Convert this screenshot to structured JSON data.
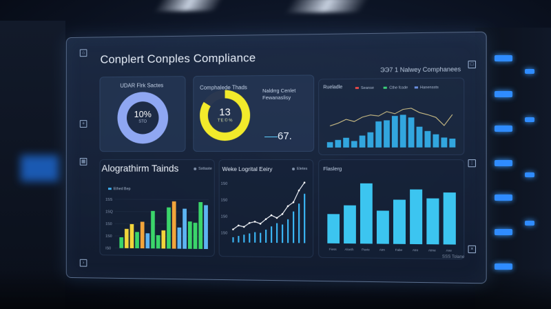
{
  "header": {
    "title": "Conplert Conples Compliance",
    "subtitle": "ЭЭ7 1 Nalwey Comphanees"
  },
  "cards": {
    "donut_a": {
      "label": "UDAR Flrk Sactes",
      "value": "10%",
      "sub": "STO"
    },
    "donut_b": {
      "label": "Comphalede Thads",
      "value": "13",
      "sub": "T’E © %"
    },
    "kpi": {
      "label_line1": "Naldrrg Cenlet",
      "label_line2": "Fewanaslisy",
      "value": "67."
    },
    "top_chart": {
      "label": "Rueladle",
      "legend": [
        "Seanse",
        "Cthe fcsde",
        "Hanenssts"
      ],
      "legend_colors": [
        "#e04848",
        "#3cd17a",
        "#6a8fe0"
      ]
    },
    "algo": {
      "title": "Alograthirm Tainds",
      "tag": "Ssttaste",
      "legend_text": "Ethed Bep",
      "y_ticks": [
        "1SS",
        "1SQ",
        "1S0",
        "1S0",
        "IS0"
      ],
      "chart_data": {
        "type": "bar",
        "values": [
          18,
          32,
          40,
          27,
          44,
          25,
          62,
          22,
          30,
          68,
          78,
          35,
          66,
          45,
          43,
          77,
          72
        ],
        "colors": [
          "#3bd56a",
          "#f2d53b",
          "#f2d53b",
          "#3bd56a",
          "#f2a43b",
          "#5db4f2",
          "#3bd56a",
          "#3bd56a",
          "#f2d53b",
          "#3bd56a",
          "#f2a43b",
          "#5db4f2",
          "#5db4f2",
          "#3bd56a",
          "#3bd56a",
          "#3bd56a",
          "#5db4f2"
        ],
        "ylim": [
          0,
          90
        ]
      }
    },
    "media": {
      "title": "Weke Logrital Eeiry",
      "tag": "Eletes",
      "y_ticks": [
        "1S0",
        "1S0",
        "1S0",
        "1S0"
      ],
      "chart_data": {
        "type": "bar+line",
        "bars": [
          8,
          10,
          12,
          14,
          16,
          15,
          20,
          25,
          30,
          28,
          36,
          48,
          60,
          75
        ],
        "line": [
          20,
          26,
          24,
          30,
          32,
          29,
          36,
          42,
          38,
          44,
          56,
          62,
          80,
          92
        ],
        "ylim": [
          0,
          100
        ]
      }
    },
    "right_bars": {
      "title": "Flaslerg",
      "chart_data": {
        "type": "bar",
        "values": [
          40,
          52,
          82,
          45,
          60,
          74,
          62,
          70
        ],
        "ylim": [
          0,
          90
        ]
      },
      "x_ticks": [
        "Fiess",
        "Aloeth",
        "Pavio",
        "Atm",
        "Fabe",
        "Atre",
        "Atme",
        "Ane"
      ]
    },
    "top_right_chart": {
      "chart_data": {
        "type": "bar+line",
        "bars": [
          10,
          14,
          18,
          12,
          22,
          28,
          48,
          50,
          58,
          60,
          55,
          38,
          30,
          24,
          18,
          16
        ],
        "line": [
          40,
          45,
          52,
          48,
          56,
          60,
          58,
          66,
          62,
          70,
          72,
          64,
          60,
          55,
          40,
          60
        ],
        "ylim": [
          0,
          90
        ]
      }
    }
  },
  "footer": {
    "text": "SSS Tolane"
  },
  "corner_icons": [
    "home-icon",
    "expand-icon",
    "grid-icon",
    "settings-icon",
    "next-icon",
    "window-icon"
  ]
}
